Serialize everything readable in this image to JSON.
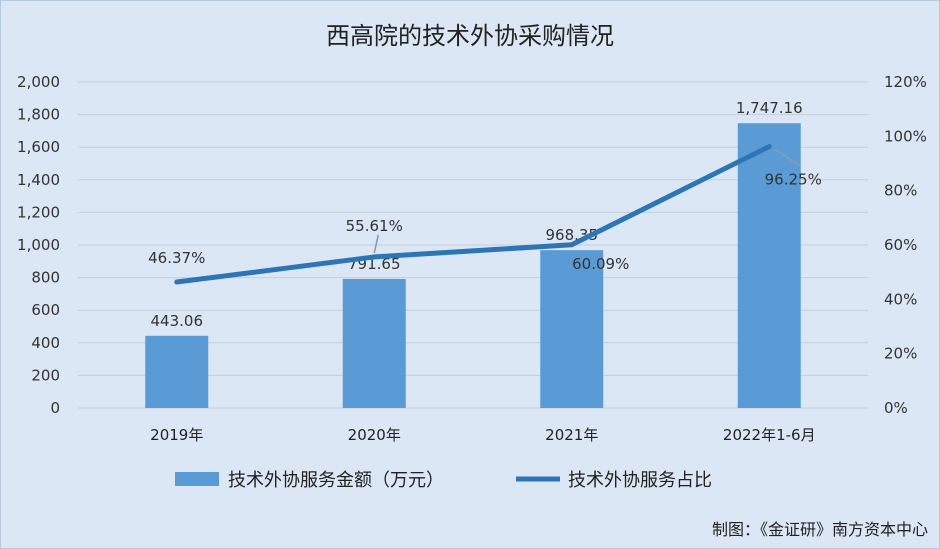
{
  "chart_data": {
    "type": "bar",
    "title": "西高院的技术外协采购情况",
    "categories": [
      "2019年",
      "2020年",
      "2021年",
      "2022年1-6月"
    ],
    "series": [
      {
        "name": "技术外协服务金额（万元）",
        "type": "bar",
        "axis": "left",
        "color": "#5b9bd5",
        "values": [
          443.06,
          791.65,
          968.35,
          1747.16
        ],
        "labels": [
          "443.06",
          "791.65",
          "968.35",
          "1,747.16"
        ]
      },
      {
        "name": "技术外协服务占比",
        "type": "line",
        "axis": "right",
        "color": "#2e75b6",
        "values": [
          46.37,
          55.61,
          60.09,
          96.25
        ],
        "labels": [
          "46.37%",
          "55.61%",
          "60.09%",
          "96.25%"
        ]
      }
    ],
    "y_left": {
      "min": 0,
      "max": 2000,
      "ticks": [
        "0",
        "200",
        "400",
        "600",
        "800",
        "1,000",
        "1,200",
        "1,400",
        "1,600",
        "1,800",
        "2,000"
      ]
    },
    "y_right": {
      "min": 0,
      "max": 120,
      "ticks": [
        "0%",
        "20%",
        "40%",
        "60%",
        "80%",
        "100%",
        "120%"
      ]
    },
    "gridlines": true,
    "legend_position": "bottom",
    "source": "制图：《金证研》南方资本中心"
  }
}
